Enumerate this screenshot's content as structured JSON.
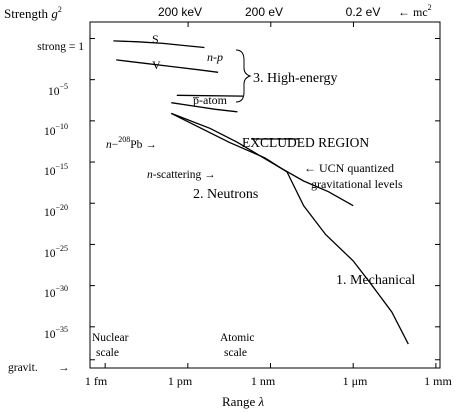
{
  "chart_data": {
    "type": "line",
    "y_axis": {
      "label_main": "Strength ",
      "label_sym": "g",
      "label_sup": "2",
      "scale": "log",
      "ticks": [
        {
          "text": "strong = 1",
          "exp": 0
        },
        {
          "text": "10",
          "sup": "−5",
          "exp": -5
        },
        {
          "text": "10",
          "sup": "−10",
          "exp": -10
        },
        {
          "text": "10",
          "sup": "−15",
          "exp": -15
        },
        {
          "text": "10",
          "sup": "−20",
          "exp": -20
        },
        {
          "text": "10",
          "sup": "−25",
          "exp": -25
        },
        {
          "text": "10",
          "sup": "−30",
          "exp": -30
        },
        {
          "text": "10",
          "sup": "−35",
          "exp": -35
        },
        {
          "text": "gravit.",
          "exp": -39
        }
      ],
      "ylim_exp": [
        -40,
        2
      ]
    },
    "x_axis": {
      "label_main": "Range ",
      "label_sym": "λ",
      "scale": "log",
      "ticks": [
        {
          "text": "1 fm",
          "exp": -15
        },
        {
          "text": "1 pm",
          "exp": -12
        },
        {
          "text": "1 nm",
          "exp": -9
        },
        {
          "text": "1 μm",
          "exp": -6
        },
        {
          "text": "1 mm",
          "exp": -3
        }
      ],
      "xlim_exp": [
        -15.55,
        -2.85
      ]
    },
    "top_axis": {
      "ticks": [
        {
          "text": "200 keV",
          "exp": -11.99
        },
        {
          "text": "200 eV",
          "exp": -8.99
        },
        {
          "text": "0.2 eV",
          "exp": -5.99
        }
      ],
      "mc2_label": "← mc",
      "mc2_sup": "2"
    },
    "series": [
      {
        "points": [
          [
            -14.7,
            -0.3
          ],
          [
            -13.8,
            -0.4
          ],
          [
            -12.9,
            -0.6
          ],
          [
            -12.0,
            -0.9
          ],
          [
            -11.4,
            -1.1
          ]
        ]
      },
      {
        "points": [
          [
            -14.6,
            -2.6
          ],
          [
            -13.6,
            -3.0
          ],
          [
            -12.6,
            -3.4
          ],
          [
            -11.6,
            -3.8
          ],
          [
            -10.9,
            -4.1
          ]
        ]
      },
      {
        "points": [
          [
            -12.6,
            -7.8
          ],
          [
            -11.8,
            -8.2
          ],
          [
            -11.0,
            -8.6
          ],
          [
            -10.2,
            -8.9
          ]
        ]
      },
      {
        "points": [
          [
            -12.6,
            -9.1
          ],
          [
            -11.2,
            -10.9
          ],
          [
            -10.2,
            -12.6
          ],
          [
            -9.5,
            -14.0
          ],
          [
            -8.7,
            -15.6
          ],
          [
            -7.8,
            -17.3
          ],
          [
            -6.9,
            -18.6
          ],
          [
            -6.0,
            -20.3
          ]
        ]
      },
      {
        "points": [
          [
            -12.6,
            -9.1
          ],
          [
            -10.5,
            -12.6
          ],
          [
            -9.2,
            -14.5
          ],
          [
            -8.4,
            -16.2
          ],
          [
            -7.8,
            -20.3
          ],
          [
            -7.0,
            -23.8
          ],
          [
            -6.0,
            -27.0
          ],
          [
            -5.4,
            -29.6
          ],
          [
            -4.6,
            -33.2
          ],
          [
            -4.0,
            -37.1
          ]
        ]
      },
      {
        "points": [
          [
            -9.7,
            -12.2
          ],
          [
            -8.0,
            -12.2
          ]
        ]
      },
      {
        "points": [
          [
            -12.4,
            -6.9
          ],
          [
            -10.0,
            -7.0
          ]
        ]
      }
    ],
    "annotations": {
      "s": "S",
      "v": "V",
      "np_pre": "n",
      "np_mid": "-",
      "np_post": "p",
      "pbar_atom": "p̅-atom",
      "high_energy": "3. High-energy",
      "excluded": "EXCLUDED REGION",
      "npb_pre": "n",
      "npb_mid": "−",
      "npb_sup": "208",
      "npb_post": "Pb →",
      "nscatt_pre": "n",
      "nscatt_post": "-scattering →",
      "neutrons": "2. Neutrons",
      "ucn_line1": "← UCN quantized",
      "ucn_line2": "gravitational levels",
      "mechanical": "1. Mechanical",
      "nuclear_line1": "Nuclear",
      "nuclear_line2": "scale",
      "atomic_line1": "Atomic",
      "atomic_line2": "scale"
    }
  }
}
